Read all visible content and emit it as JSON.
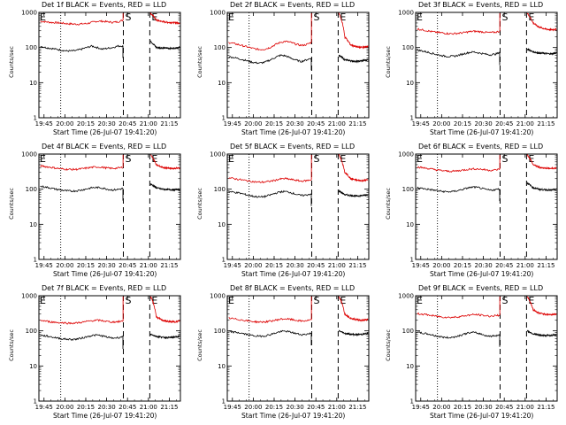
{
  "chart_data": [
    {
      "type": "line",
      "title": "Det 1f BLACK = Events, RED = LLD",
      "xlabel": "Start Time (26-Jul-07 19:41:20)",
      "ylabel": "Counts/sec",
      "yscale": "log",
      "ylim": [
        1,
        1000
      ],
      "x_tick_labels": [
        "19:45",
        "20:00",
        "20:15",
        "20:30",
        "20:45",
        "21:00",
        "21:15"
      ],
      "y_tick_labels": [
        "1000",
        "100",
        "10",
        "1"
      ],
      "markers": [
        {
          "label": "S",
          "time": "20:42"
        },
        {
          "label": "E",
          "time": "21:01"
        }
      ],
      "start_line": "19:57",
      "series": [
        {
          "name": "LLD",
          "color": "#dd0000",
          "values": [
            560,
            540,
            520,
            510,
            500,
            480,
            470,
            460,
            470,
            480,
            520,
            560,
            560,
            540,
            520,
            540,
            600
          ]
        },
        {
          "name": "Events",
          "color": "#000000",
          "values": [
            110,
            100,
            95,
            90,
            85,
            80,
            80,
            82,
            90,
            100,
            110,
            100,
            90,
            95,
            100,
            110,
            112
          ]
        }
      ],
      "after_series": [
        {
          "name": "LLD",
          "values": [
            950,
            600,
            550,
            520,
            510,
            500
          ]
        },
        {
          "name": "Events",
          "values": [
            150,
            100,
            98,
            95,
            96,
            100
          ]
        }
      ]
    },
    {
      "type": "line",
      "title": "Det 2f BLACK = Events, RED = LLD",
      "xlabel": "Start Time (26-Jul-07 19:41:20)",
      "ylabel": "Counts/sec",
      "yscale": "log",
      "ylim": [
        1,
        1000
      ],
      "x_tick_labels": [
        "19:45",
        "20:00",
        "20:15",
        "20:30",
        "20:45",
        "21:00",
        "21:15"
      ],
      "y_tick_labels": [
        "1000",
        "100",
        "10",
        "1"
      ],
      "markers": [
        {
          "label": "S",
          "time": "20:42"
        },
        {
          "label": "E",
          "time": "21:01"
        }
      ],
      "start_line": "19:57",
      "series": [
        {
          "name": "LLD",
          "color": "#dd0000",
          "values": [
            140,
            130,
            120,
            110,
            100,
            92,
            88,
            90,
            100,
            120,
            140,
            150,
            140,
            125,
            115,
            120,
            140
          ]
        },
        {
          "name": "Events",
          "color": "#000000",
          "values": [
            55,
            52,
            48,
            44,
            40,
            37,
            36,
            38,
            44,
            52,
            60,
            58,
            50,
            44,
            40,
            44,
            50
          ]
        }
      ],
      "after_series": [
        {
          "name": "LLD",
          "values": [
            950,
            200,
            120,
            105,
            100,
            110
          ]
        },
        {
          "name": "Events",
          "values": [
            60,
            45,
            42,
            40,
            42,
            45
          ]
        }
      ]
    },
    {
      "type": "line",
      "title": "Det 3f BLACK = Events, RED = LLD",
      "xlabel": "Start Time (26-Jul-07 19:41:20)",
      "ylabel": "Counts/sec",
      "yscale": "log",
      "ylim": [
        1,
        1000
      ],
      "x_tick_labels": [
        "19:45",
        "20:00",
        "20:15",
        "20:30",
        "20:45",
        "21:00",
        "21:15"
      ],
      "y_tick_labels": [
        "1000",
        "100",
        "10",
        "1"
      ],
      "markers": [
        {
          "label": "S",
          "time": "20:42"
        },
        {
          "label": "E",
          "time": "21:01"
        }
      ],
      "start_line": "19:57",
      "series": [
        {
          "name": "LLD",
          "color": "#dd0000",
          "values": [
            340,
            320,
            300,
            280,
            270,
            260,
            250,
            248,
            255,
            265,
            280,
            290,
            285,
            275,
            265,
            270,
            290
          ]
        },
        {
          "name": "Events",
          "color": "#000000",
          "values": [
            85,
            80,
            74,
            68,
            62,
            58,
            56,
            56,
            60,
            66,
            72,
            75,
            70,
            66,
            62,
            64,
            70
          ]
        }
      ],
      "after_series": [
        {
          "name": "LLD",
          "values": [
            950,
            500,
            380,
            340,
            320,
            330
          ]
        },
        {
          "name": "Events",
          "values": [
            90,
            75,
            70,
            68,
            66,
            70
          ]
        }
      ]
    },
    {
      "type": "line",
      "title": "Det 4f BLACK = Events, RED = LLD",
      "xlabel": "Start Time (26-Jul-07 19:41:20)",
      "ylabel": "Counts/sec",
      "yscale": "log",
      "ylim": [
        1,
        1000
      ],
      "x_tick_labels": [
        "19:45",
        "20:00",
        "20:15",
        "20:30",
        "20:45",
        "21:00",
        "21:15"
      ],
      "y_tick_labels": [
        "1000",
        "100",
        "10",
        "1"
      ],
      "markers": [
        {
          "label": "S",
          "time": "20:42"
        },
        {
          "label": "E",
          "time": "21:01"
        }
      ],
      "start_line": "19:57",
      "series": [
        {
          "name": "LLD",
          "color": "#dd0000",
          "values": [
            460,
            440,
            420,
            400,
            380,
            370,
            365,
            368,
            380,
            400,
            420,
            430,
            420,
            400,
            390,
            400,
            420
          ]
        },
        {
          "name": "Events",
          "color": "#000000",
          "values": [
            120,
            115,
            108,
            100,
            95,
            90,
            88,
            90,
            95,
            102,
            110,
            112,
            108,
            100,
            95,
            98,
            105
          ]
        }
      ],
      "after_series": [
        {
          "name": "LLD",
          "values": [
            950,
            500,
            420,
            400,
            390,
            400
          ]
        },
        {
          "name": "Events",
          "values": [
            140,
            110,
            100,
            98,
            96,
            100
          ]
        }
      ]
    },
    {
      "type": "line",
      "title": "Det 5f BLACK = Events, RED = LLD",
      "xlabel": "Start Time (26-Jul-07 19:41:20)",
      "ylabel": "Counts/sec",
      "yscale": "log",
      "ylim": [
        1,
        1000
      ],
      "x_tick_labels": [
        "19:45",
        "20:00",
        "20:15",
        "20:30",
        "20:45",
        "21:00",
        "21:15"
      ],
      "y_tick_labels": [
        "1000",
        "100",
        "10",
        "1"
      ],
      "markers": [
        {
          "label": "S",
          "time": "20:42"
        },
        {
          "label": "E",
          "time": "21:01"
        }
      ],
      "start_line": "19:57",
      "series": [
        {
          "name": "LLD",
          "color": "#dd0000",
          "values": [
            210,
            200,
            190,
            180,
            170,
            162,
            158,
            160,
            168,
            180,
            195,
            200,
            190,
            180,
            170,
            175,
            185
          ]
        },
        {
          "name": "Events",
          "color": "#000000",
          "values": [
            85,
            82,
            78,
            72,
            66,
            62,
            60,
            62,
            68,
            76,
            84,
            86,
            80,
            72,
            66,
            68,
            74
          ]
        }
      ],
      "after_series": [
        {
          "name": "LLD",
          "values": [
            950,
            300,
            200,
            180,
            175,
            185
          ]
        },
        {
          "name": "Events",
          "values": [
            90,
            70,
            66,
            64,
            66,
            70
          ]
        }
      ]
    },
    {
      "type": "line",
      "title": "Det 6f BLACK = Events, RED = LLD",
      "xlabel": "Start Time (26-Jul-07 19:41:20)",
      "ylabel": "Counts/sec",
      "yscale": "log",
      "ylim": [
        1,
        1000
      ],
      "x_tick_labels": [
        "19:45",
        "20:00",
        "20:15",
        "20:30",
        "20:45",
        "21:00",
        "21:15"
      ],
      "y_tick_labels": [
        "1000",
        "100",
        "10",
        "1"
      ],
      "markers": [
        {
          "label": "S",
          "time": "20:42"
        },
        {
          "label": "E",
          "time": "21:01"
        }
      ],
      "start_line": "19:57",
      "series": [
        {
          "name": "LLD",
          "color": "#dd0000",
          "values": [
            430,
            410,
            390,
            370,
            350,
            335,
            325,
            325,
            335,
            350,
            370,
            380,
            375,
            360,
            345,
            350,
            370
          ]
        },
        {
          "name": "Events",
          "color": "#000000",
          "values": [
            110,
            105,
            100,
            95,
            90,
            86,
            84,
            86,
            92,
            100,
            110,
            115,
            110,
            100,
            94,
            96,
            102
          ]
        }
      ],
      "after_series": [
        {
          "name": "LLD",
          "values": [
            950,
            500,
            420,
            400,
            390,
            400
          ]
        },
        {
          "name": "Events",
          "values": [
            150,
            110,
            100,
            96,
            94,
            98
          ]
        }
      ]
    },
    {
      "type": "line",
      "title": "Det 7f BLACK = Events, RED = LLD",
      "xlabel": "Start Time (26-Jul-07 19:41:20)",
      "ylabel": "Counts/sec",
      "yscale": "log",
      "ylim": [
        1,
        1000
      ],
      "x_tick_labels": [
        "19:45",
        "20:00",
        "20:15",
        "20:30",
        "20:45",
        "21:00",
        "21:15"
      ],
      "y_tick_labels": [
        "1000",
        "100",
        "10",
        "1"
      ],
      "markers": [
        {
          "label": "S",
          "time": "20:42"
        },
        {
          "label": "E",
          "time": "21:01"
        }
      ],
      "start_line": "19:57",
      "series": [
        {
          "name": "LLD",
          "color": "#dd0000",
          "values": [
            200,
            190,
            180,
            175,
            170,
            168,
            165,
            168,
            175,
            185,
            195,
            200,
            195,
            185,
            178,
            182,
            190
          ]
        },
        {
          "name": "Events",
          "color": "#000000",
          "values": [
            75,
            72,
            68,
            64,
            60,
            58,
            57,
            58,
            62,
            68,
            74,
            76,
            72,
            66,
            62,
            64,
            68
          ]
        }
      ],
      "after_series": [
        {
          "name": "LLD",
          "values": [
            950,
            250,
            200,
            185,
            180,
            190
          ]
        },
        {
          "name": "Events",
          "values": [
            80,
            70,
            66,
            64,
            66,
            70
          ]
        }
      ]
    },
    {
      "type": "line",
      "title": "Det 8f BLACK = Events, RED = LLD",
      "xlabel": "Start Time (26-Jul-07 19:41:20)",
      "ylabel": "Counts/sec",
      "yscale": "log",
      "ylim": [
        1,
        1000
      ],
      "x_tick_labels": [
        "19:45",
        "20:00",
        "20:15",
        "20:30",
        "20:45",
        "21:00",
        "21:15"
      ],
      "y_tick_labels": [
        "1000",
        "100",
        "10",
        "1"
      ],
      "markers": [
        {
          "label": "S",
          "time": "20:42"
        },
        {
          "label": "E",
          "time": "21:01"
        }
      ],
      "start_line": "19:57",
      "series": [
        {
          "name": "LLD",
          "color": "#dd0000",
          "values": [
            230,
            220,
            210,
            200,
            190,
            182,
            178,
            180,
            188,
            200,
            215,
            220,
            212,
            200,
            190,
            195,
            205
          ]
        },
        {
          "name": "Events",
          "color": "#000000",
          "values": [
            95,
            92,
            88,
            82,
            76,
            72,
            70,
            72,
            78,
            86,
            95,
            98,
            92,
            84,
            78,
            80,
            86
          ]
        }
      ],
      "after_series": [
        {
          "name": "LLD",
          "values": [
            950,
            300,
            230,
            210,
            200,
            210
          ]
        },
        {
          "name": "Events",
          "values": [
            100,
            85,
            80,
            78,
            80,
            84
          ]
        }
      ]
    },
    {
      "type": "line",
      "title": "Det 9f BLACK = Events, RED = LLD",
      "xlabel": "Start Time (26-Jul-07 19:41:20)",
      "ylabel": "Counts/sec",
      "yscale": "log",
      "ylim": [
        1,
        1000
      ],
      "x_tick_labels": [
        "19:45",
        "20:00",
        "20:15",
        "20:30",
        "20:45",
        "21:00",
        "21:15"
      ],
      "y_tick_labels": [
        "1000",
        "100",
        "10",
        "1"
      ],
      "markers": [
        {
          "label": "S",
          "time": "20:42"
        },
        {
          "label": "E",
          "time": "21:01"
        }
      ],
      "start_line": "19:57",
      "series": [
        {
          "name": "LLD",
          "color": "#dd0000",
          "values": [
            310,
            300,
            285,
            270,
            258,
            248,
            242,
            244,
            252,
            265,
            280,
            290,
            285,
            272,
            262,
            268,
            282
          ]
        },
        {
          "name": "Events",
          "color": "#000000",
          "values": [
            90,
            86,
            82,
            76,
            70,
            66,
            64,
            66,
            72,
            80,
            88,
            90,
            84,
            76,
            70,
            72,
            78
          ]
        }
      ],
      "after_series": [
        {
          "name": "LLD",
          "values": [
            950,
            400,
            320,
            300,
            290,
            300
          ]
        },
        {
          "name": "Events",
          "values": [
            100,
            82,
            76,
            74,
            74,
            78
          ]
        }
      ]
    }
  ]
}
